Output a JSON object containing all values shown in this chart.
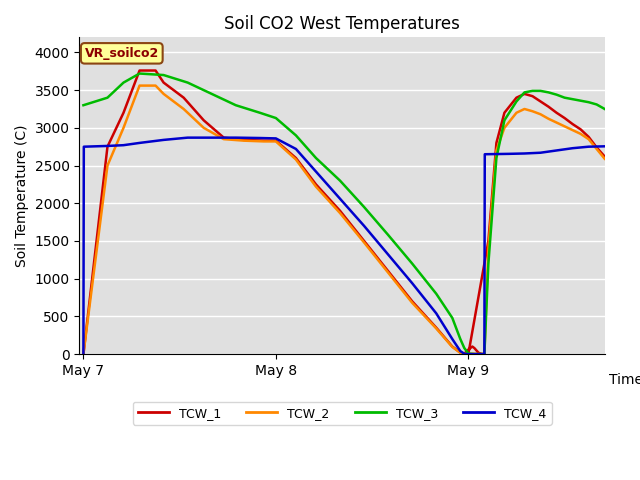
{
  "title": "Soil CO2 West Temperatures",
  "ylabel": "Soil Temperature (C)",
  "xlabel": "Time",
  "ylim": [
    0,
    4200
  ],
  "yticks": [
    0,
    500,
    1000,
    1500,
    2000,
    2500,
    3000,
    3500,
    4000
  ],
  "annotation_text": "VR_soilco2",
  "colors": {
    "TCW_1": "#cc0000",
    "TCW_2": "#ff8800",
    "TCW_3": "#00bb00",
    "TCW_4": "#0000cc"
  },
  "background_color": "#e0e0e0",
  "xtick_labels": [
    "May 7",
    "May 8",
    "May 9"
  ],
  "xtick_positions": [
    0,
    480,
    960
  ],
  "xlim": [
    -10,
    1300
  ],
  "series": {
    "TCW_1": [
      [
        0,
        0
      ],
      [
        60,
        2750
      ],
      [
        100,
        3200
      ],
      [
        140,
        3760
      ],
      [
        180,
        3760
      ],
      [
        200,
        3600
      ],
      [
        250,
        3400
      ],
      [
        300,
        3100
      ],
      [
        350,
        2870
      ],
      [
        400,
        2840
      ],
      [
        450,
        2830
      ],
      [
        480,
        2830
      ],
      [
        530,
        2600
      ],
      [
        580,
        2250
      ],
      [
        640,
        1900
      ],
      [
        700,
        1500
      ],
      [
        760,
        1100
      ],
      [
        820,
        700
      ],
      [
        880,
        350
      ],
      [
        920,
        100
      ],
      [
        940,
        20
      ],
      [
        950,
        5
      ],
      [
        960,
        60
      ],
      [
        970,
        100
      ],
      [
        975,
        80
      ],
      [
        980,
        50
      ],
      [
        985,
        20
      ],
      [
        990,
        5
      ],
      [
        995,
        0
      ],
      [
        1000,
        0
      ],
      [
        960,
        0
      ],
      [
        1010,
        1500
      ],
      [
        1030,
        2800
      ],
      [
        1050,
        3200
      ],
      [
        1080,
        3400
      ],
      [
        1100,
        3450
      ],
      [
        1120,
        3420
      ],
      [
        1140,
        3350
      ],
      [
        1160,
        3280
      ],
      [
        1180,
        3200
      ],
      [
        1200,
        3130
      ],
      [
        1220,
        3050
      ],
      [
        1240,
        2980
      ],
      [
        1260,
        2880
      ],
      [
        1280,
        2740
      ],
      [
        1300,
        2620
      ]
    ],
    "TCW_2": [
      [
        0,
        0
      ],
      [
        60,
        2500
      ],
      [
        100,
        3000
      ],
      [
        140,
        3560
      ],
      [
        180,
        3560
      ],
      [
        200,
        3450
      ],
      [
        250,
        3250
      ],
      [
        300,
        3000
      ],
      [
        350,
        2850
      ],
      [
        400,
        2830
      ],
      [
        450,
        2820
      ],
      [
        480,
        2820
      ],
      [
        530,
        2580
      ],
      [
        580,
        2220
      ],
      [
        640,
        1870
      ],
      [
        700,
        1480
      ],
      [
        760,
        1080
      ],
      [
        820,
        680
      ],
      [
        880,
        340
      ],
      [
        920,
        95
      ],
      [
        940,
        18
      ],
      [
        950,
        4
      ],
      [
        960,
        0
      ],
      [
        970,
        4
      ],
      [
        975,
        3
      ],
      [
        980,
        2
      ],
      [
        985,
        1
      ],
      [
        990,
        0
      ],
      [
        995,
        0
      ],
      [
        1000,
        0
      ],
      [
        1010,
        1400
      ],
      [
        1030,
        2700
      ],
      [
        1050,
        3000
      ],
      [
        1080,
        3200
      ],
      [
        1100,
        3250
      ],
      [
        1120,
        3220
      ],
      [
        1140,
        3180
      ],
      [
        1160,
        3120
      ],
      [
        1180,
        3070
      ],
      [
        1200,
        3020
      ],
      [
        1220,
        2970
      ],
      [
        1240,
        2920
      ],
      [
        1260,
        2850
      ],
      [
        1280,
        2720
      ],
      [
        1300,
        2590
      ]
    ],
    "TCW_3": [
      [
        0,
        3300
      ],
      [
        60,
        3400
      ],
      [
        100,
        3600
      ],
      [
        140,
        3720
      ],
      [
        200,
        3700
      ],
      [
        260,
        3600
      ],
      [
        320,
        3450
      ],
      [
        380,
        3300
      ],
      [
        440,
        3200
      ],
      [
        480,
        3130
      ],
      [
        530,
        2900
      ],
      [
        580,
        2600
      ],
      [
        640,
        2300
      ],
      [
        700,
        1950
      ],
      [
        760,
        1580
      ],
      [
        820,
        1200
      ],
      [
        880,
        800
      ],
      [
        920,
        480
      ],
      [
        940,
        200
      ],
      [
        950,
        80
      ],
      [
        960,
        10
      ],
      [
        965,
        5
      ],
      [
        970,
        2
      ],
      [
        975,
        0
      ],
      [
        980,
        0
      ],
      [
        985,
        0
      ],
      [
        990,
        0
      ],
      [
        995,
        0
      ],
      [
        1000,
        0
      ],
      [
        1010,
        1200
      ],
      [
        1030,
        2600
      ],
      [
        1050,
        3100
      ],
      [
        1080,
        3350
      ],
      [
        1100,
        3470
      ],
      [
        1120,
        3490
      ],
      [
        1140,
        3490
      ],
      [
        1160,
        3470
      ],
      [
        1180,
        3440
      ],
      [
        1200,
        3400
      ],
      [
        1220,
        3380
      ],
      [
        1240,
        3360
      ],
      [
        1260,
        3340
      ],
      [
        1280,
        3310
      ],
      [
        1300,
        3250
      ]
    ],
    "TCW_4": [
      [
        0,
        0
      ],
      [
        1,
        2750
      ],
      [
        60,
        2760
      ],
      [
        100,
        2770
      ],
      [
        140,
        2800
      ],
      [
        200,
        2840
      ],
      [
        260,
        2870
      ],
      [
        320,
        2870
      ],
      [
        380,
        2870
      ],
      [
        440,
        2865
      ],
      [
        480,
        2860
      ],
      [
        530,
        2720
      ],
      [
        580,
        2420
      ],
      [
        640,
        2060
      ],
      [
        700,
        1700
      ],
      [
        760,
        1320
      ],
      [
        820,
        940
      ],
      [
        880,
        540
      ],
      [
        920,
        200
      ],
      [
        940,
        40
      ],
      [
        950,
        5
      ],
      [
        955,
        1
      ],
      [
        960,
        0
      ],
      [
        965,
        0
      ],
      [
        970,
        0
      ],
      [
        975,
        0
      ],
      [
        980,
        0
      ],
      [
        985,
        0
      ],
      [
        990,
        0
      ],
      [
        995,
        0
      ],
      [
        1000,
        0
      ],
      [
        1001,
        2650
      ],
      [
        1060,
        2655
      ],
      [
        1100,
        2660
      ],
      [
        1140,
        2670
      ],
      [
        1180,
        2700
      ],
      [
        1220,
        2730
      ],
      [
        1260,
        2750
      ],
      [
        1300,
        2755
      ]
    ]
  }
}
